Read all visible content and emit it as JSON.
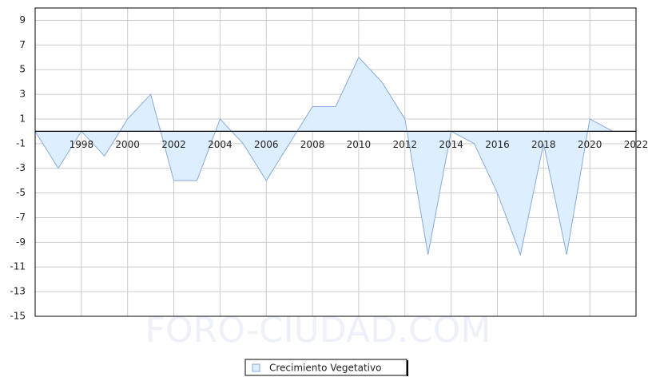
{
  "chart_data": {
    "type": "area",
    "watermark": "FORO-CIUDAD.COM",
    "x": [
      1996,
      1997,
      1998,
      1999,
      2000,
      2001,
      2002,
      2003,
      2004,
      2005,
      2006,
      2007,
      2008,
      2009,
      2010,
      2011,
      2012,
      2013,
      2014,
      2015,
      2016,
      2017,
      2018,
      2019,
      2020,
      2021
    ],
    "series": [
      {
        "name": "Crecimiento Vegetativo",
        "color": "#88aadd",
        "fill": "#ddeeff",
        "values": [
          0,
          -3,
          0,
          -2,
          1,
          3,
          -4,
          -4,
          1,
          -1,
          -4,
          -1,
          2,
          2,
          6,
          4,
          1,
          -10,
          0,
          -1,
          -5,
          -10,
          -1,
          -10,
          1,
          0
        ]
      }
    ],
    "xlim": [
      1996,
      2022
    ],
    "xticks": [
      1998,
      2000,
      2002,
      2004,
      2006,
      2008,
      2010,
      2012,
      2014,
      2016,
      2018,
      2020,
      2022
    ],
    "ylim": [
      -15,
      10
    ],
    "yticks": [
      9,
      7,
      5,
      3,
      1,
      -1,
      -3,
      -5,
      -7,
      -9,
      -11,
      -13,
      -15
    ],
    "grid": true
  }
}
